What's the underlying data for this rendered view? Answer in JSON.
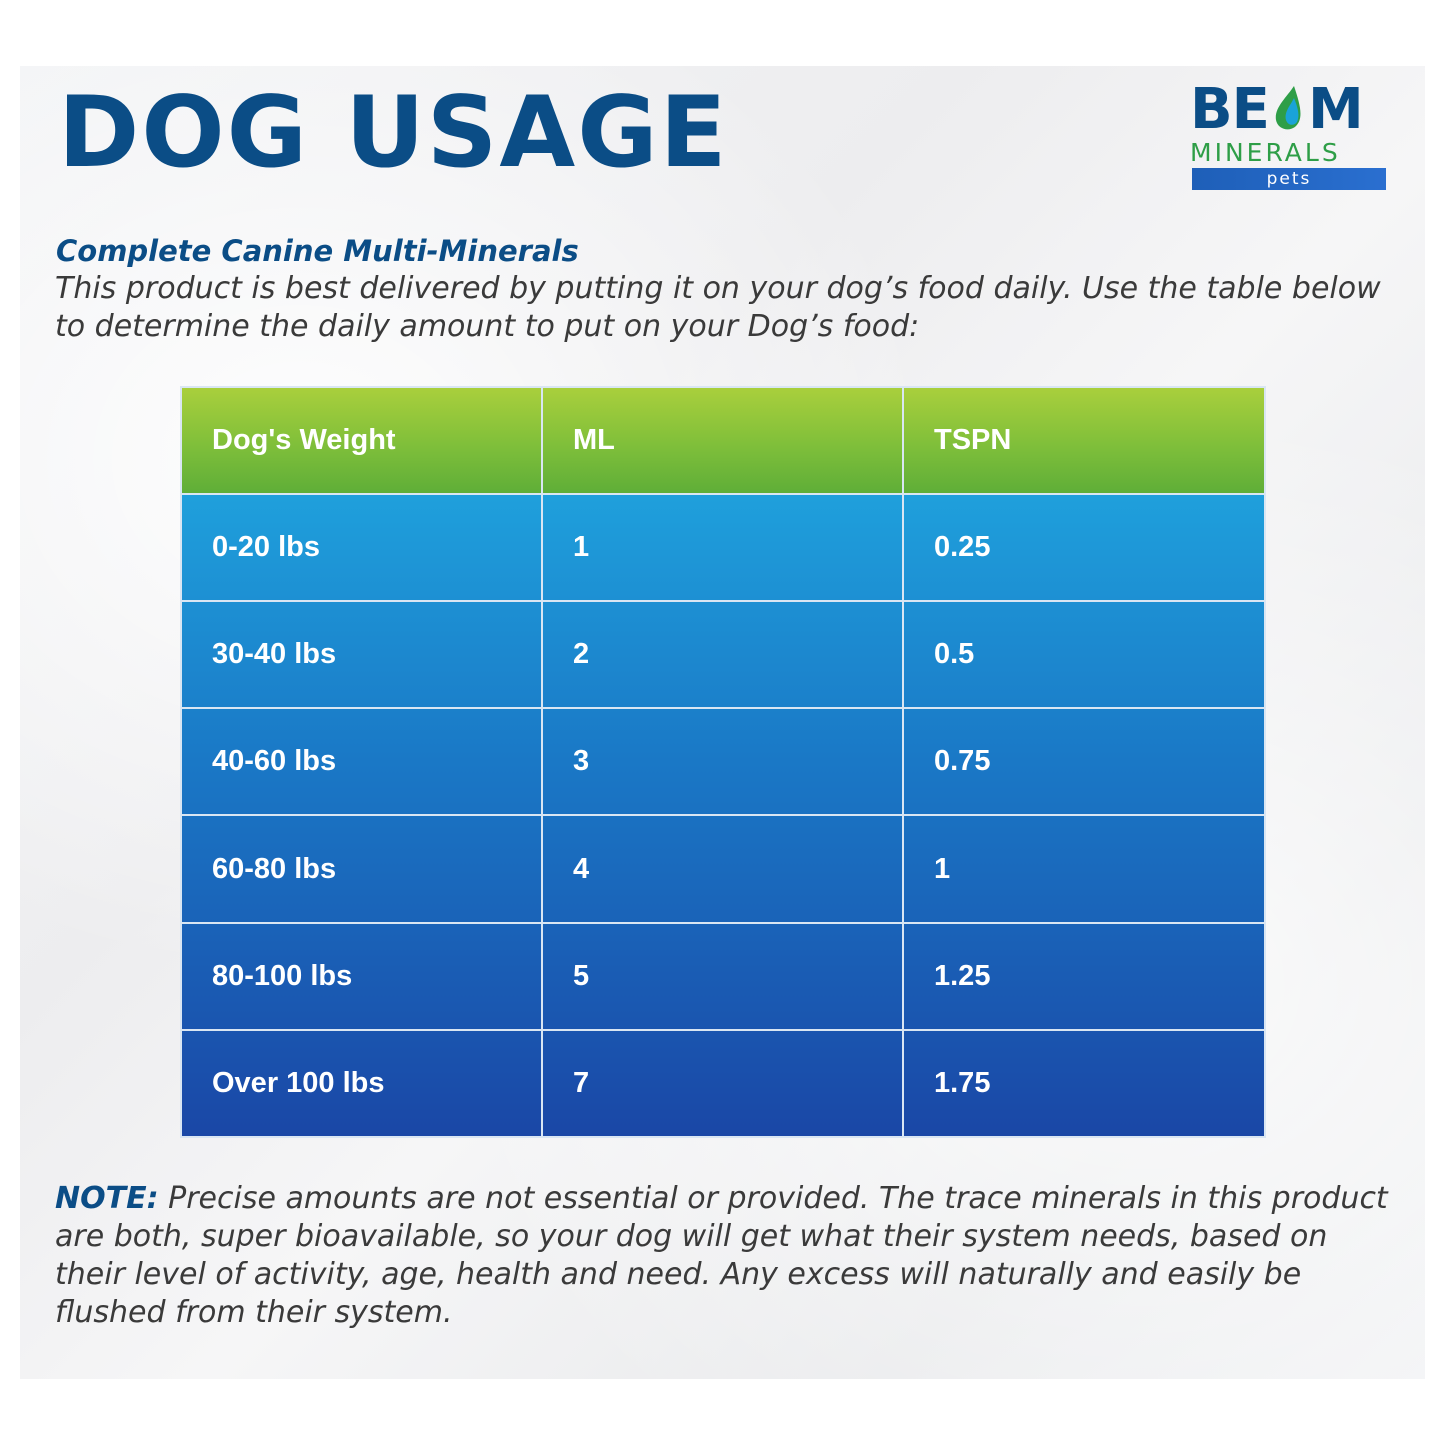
{
  "header": {
    "title": "DOG USAGE"
  },
  "logo": {
    "brand": "BEAM",
    "line2": "MINERALS",
    "line3": "pets",
    "colors": {
      "primary": "#0b4d86",
      "green": "#2e9e47",
      "bar": "#1e5fb8"
    }
  },
  "product": {
    "name": "Complete Canine Multi-Minerals",
    "description": "This product is best delivered by putting it on your dog’s food daily. Use the table below to determine the daily amount to put on your Dog’s food:"
  },
  "table": {
    "headers": [
      "Dog's Weight",
      "ML",
      "TSPN"
    ],
    "rows": [
      [
        "0-20 lbs",
        "1",
        "0.25"
      ],
      [
        "30-40 lbs",
        "2",
        "0.5"
      ],
      [
        "40-60 lbs",
        "3",
        "0.75"
      ],
      [
        "60-80 lbs",
        "4",
        "1"
      ],
      [
        "80-100 lbs",
        "5",
        "1.25"
      ],
      [
        "Over 100 lbs",
        "7",
        "1.75"
      ]
    ],
    "colors": {
      "header_green": "#7fbf3a",
      "body_top": "#1fa0dc",
      "body_bottom": "#1a47a6"
    }
  },
  "note": {
    "label": "NOTE:",
    "text": " Precise amounts are not essential or provided. The trace minerals in this product are both, super bioavailable, so your dog will get what their system needs, based on their level of activity, age, health and need. Any excess will naturally and easily be flushed from their system."
  }
}
